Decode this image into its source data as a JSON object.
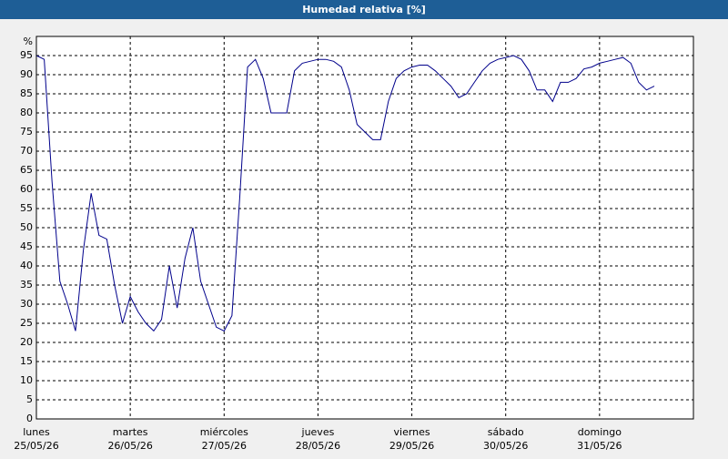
{
  "chart_data": {
    "type": "line",
    "title": "Humedad relativa [%]",
    "y_unit": "%",
    "categories": [
      "lunes",
      null,
      null,
      null,
      null,
      null,
      null,
      null,
      null,
      null,
      null,
      null,
      "martes",
      null,
      null,
      null,
      null,
      null,
      null,
      null,
      null,
      null,
      null,
      null,
      "miércoles",
      null,
      null,
      null,
      null,
      null,
      null,
      null,
      null,
      null,
      null,
      null,
      "jueves",
      null,
      null,
      null,
      null,
      null,
      null,
      null,
      null,
      null,
      null,
      null,
      "viernes",
      null,
      null,
      null,
      null,
      null,
      null,
      null,
      null,
      null,
      null,
      null,
      "sábado",
      null,
      null,
      null,
      null,
      null,
      null,
      null,
      null,
      null,
      null,
      null,
      "domingo",
      null,
      null,
      null,
      null,
      null,
      null,
      null,
      null,
      null,
      null,
      null,
      null
    ],
    "category_dates": [
      "25/05/26",
      null,
      null,
      null,
      null,
      null,
      null,
      null,
      null,
      null,
      null,
      null,
      "26/05/26",
      null,
      null,
      null,
      null,
      null,
      null,
      null,
      null,
      null,
      null,
      null,
      "27/05/26",
      null,
      null,
      null,
      null,
      null,
      null,
      null,
      null,
      null,
      null,
      null,
      "28/05/26",
      null,
      null,
      null,
      null,
      null,
      null,
      null,
      null,
      null,
      null,
      null,
      "29/05/26",
      null,
      null,
      null,
      null,
      null,
      null,
      null,
      null,
      null,
      null,
      null,
      "30/05/26",
      null,
      null,
      null,
      null,
      null,
      null,
      null,
      null,
      null,
      null,
      null,
      "31/05/26",
      null,
      null,
      null,
      null,
      null,
      null,
      null,
      null,
      null,
      null,
      null,
      null
    ],
    "values": [
      95,
      94,
      62,
      36,
      30,
      23,
      44,
      59,
      48,
      47,
      35,
      25,
      32,
      28,
      25,
      23,
      26,
      40,
      29,
      42,
      50,
      36,
      30,
      24,
      23,
      27,
      58,
      92,
      94,
      89,
      80,
      80,
      80,
      91,
      93,
      93.5,
      94,
      94,
      93.5,
      92,
      86,
      77,
      75,
      73,
      73,
      83,
      89,
      91,
      92,
      92.5,
      92.5,
      91,
      89,
      87,
      84,
      85,
      88,
      91,
      93,
      94,
      94.5,
      95,
      94,
      91,
      86,
      86,
      83,
      88,
      88,
      89,
      91.5,
      92,
      93,
      93.5,
      94,
      94.5,
      93,
      88,
      86,
      87,
      null,
      null,
      null,
      null,
      null
    ],
    "color": "#00008b",
    "ylim": [
      0,
      100
    ],
    "yticks": [
      0,
      5,
      10,
      15,
      20,
      25,
      30,
      35,
      40,
      45,
      50,
      55,
      60,
      65,
      70,
      75,
      80,
      85,
      90,
      95
    ],
    "grid": true
  }
}
